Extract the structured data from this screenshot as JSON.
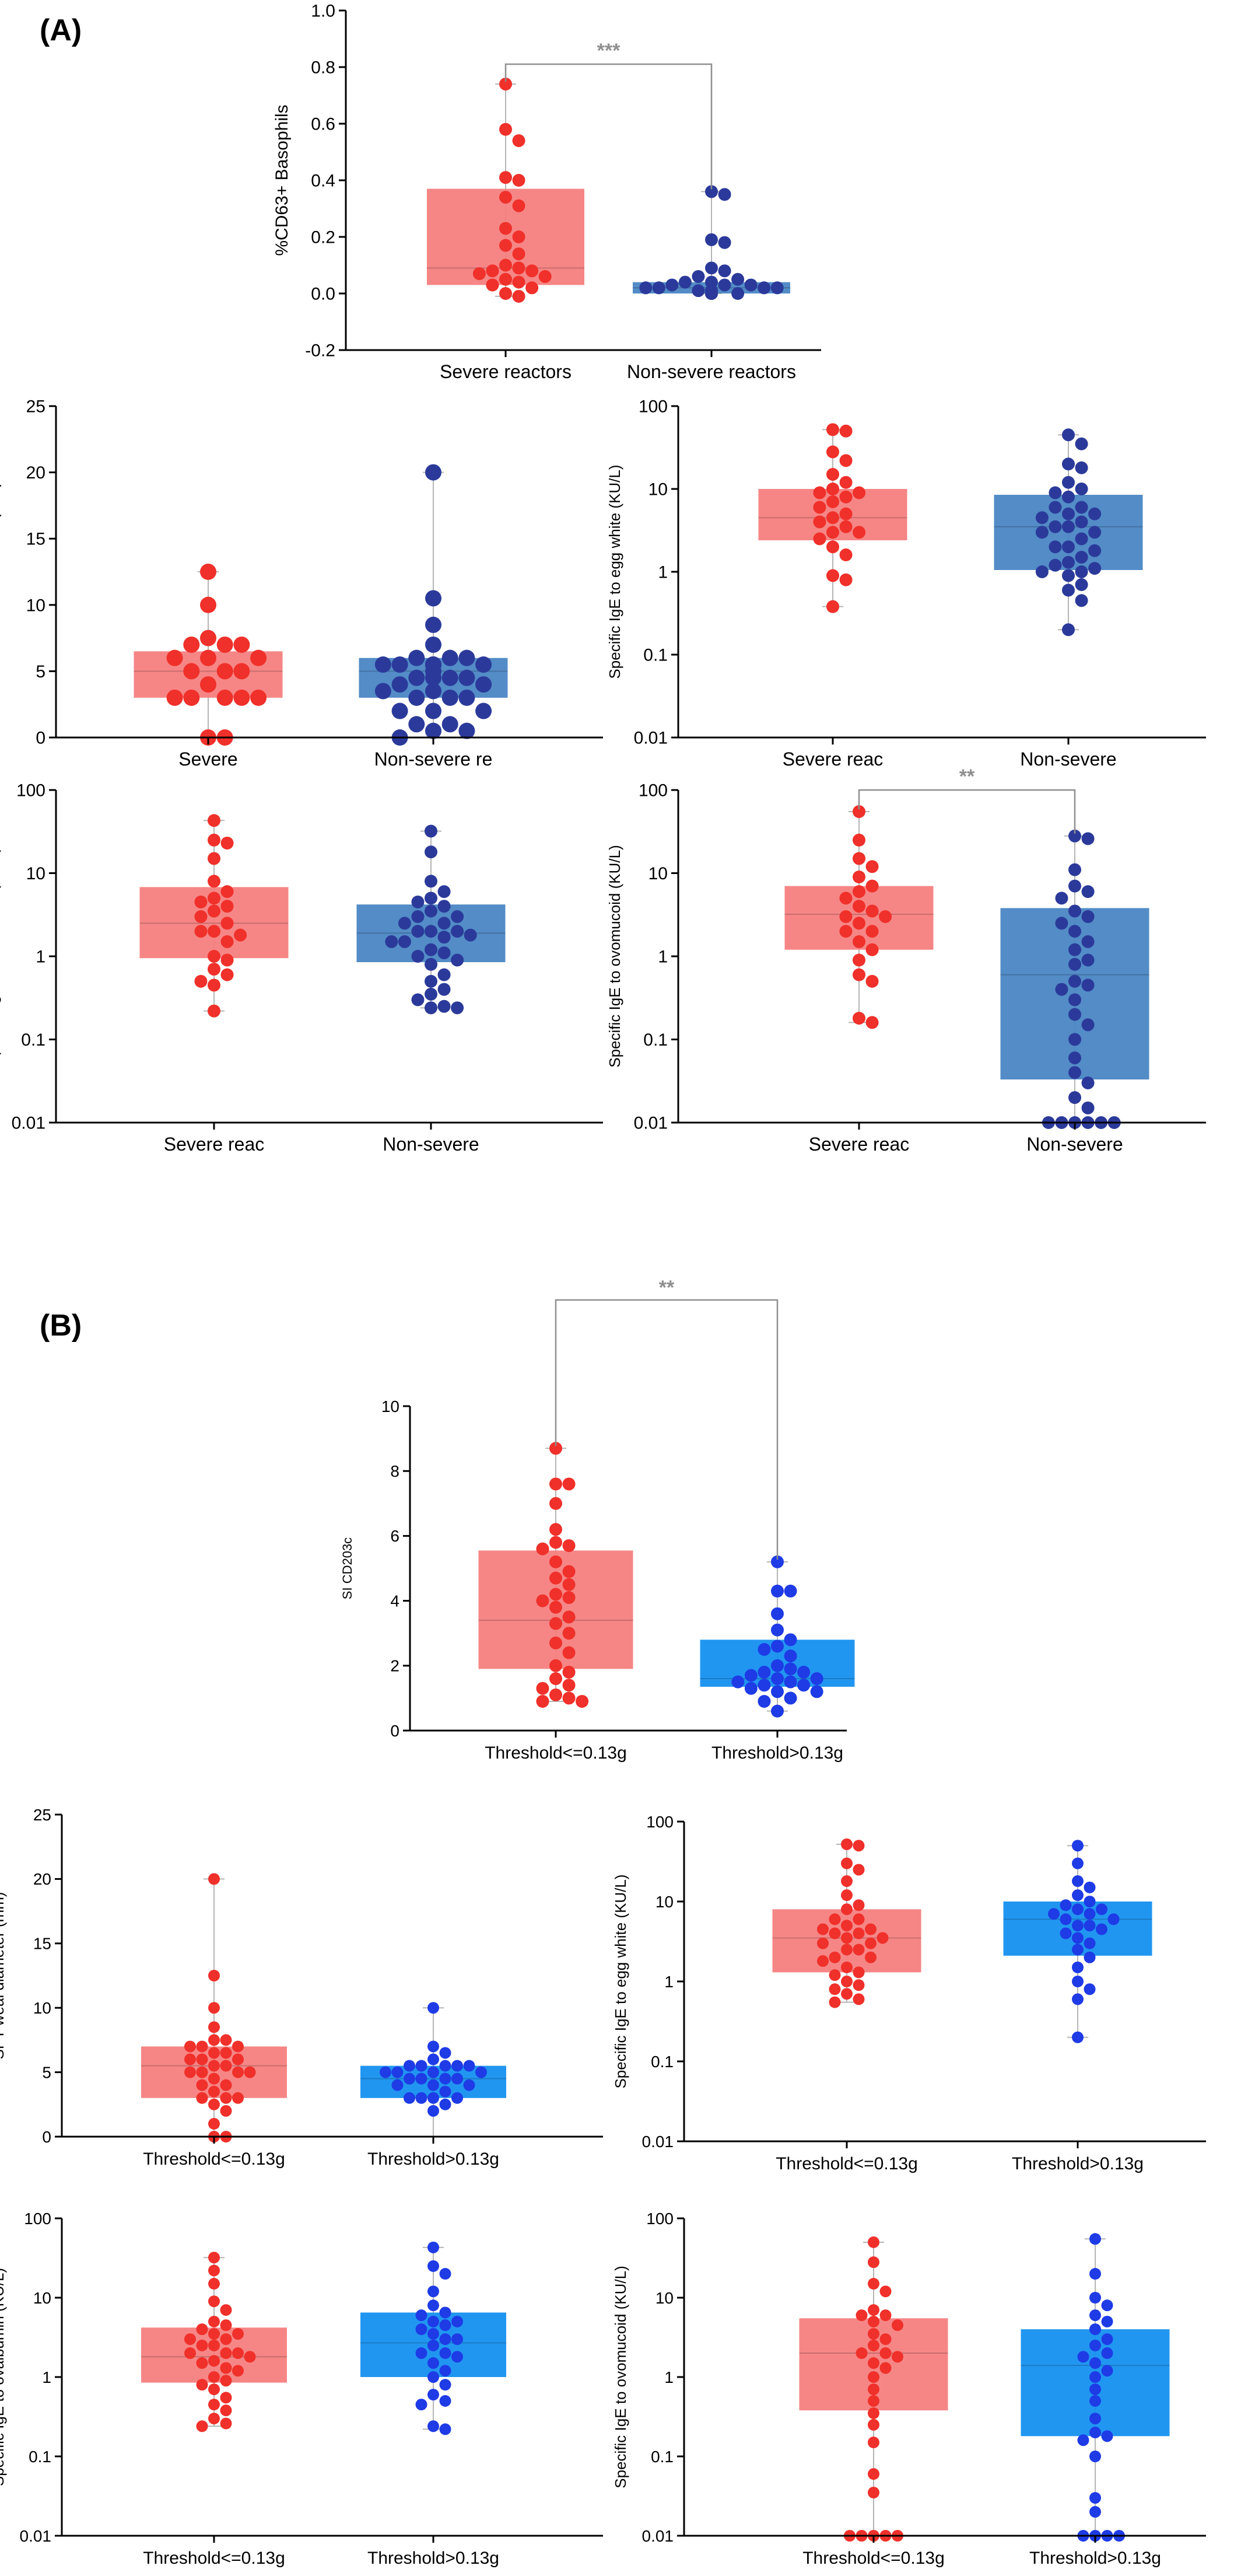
{
  "panels": {
    "a": "(A)",
    "b": "(B)"
  },
  "colors": {
    "severe": "#F57F7F",
    "severe_dot": "#F0302A",
    "nonsevere_a": "#4A86C4",
    "nonsevere_a_dot": "#2B3A9A",
    "nonsevere_b": "#1590F0",
    "nonsevere_b_dot": "#1E3BE6",
    "axis": "#000000",
    "whisker": "#B5B5B5",
    "sig": "#8F8F8F"
  },
  "chart_data": [
    {
      "id": "A1",
      "type": "box",
      "ylabel": "%CD63+ Basophils",
      "scale": "linear",
      "ylim": [
        -0.2,
        1.0
      ],
      "yticks": [
        -0.2,
        0.0,
        0.2,
        0.4,
        0.6,
        0.8,
        1.0
      ],
      "ytick_labels": [
        "-0.2",
        "0.0",
        "0.2",
        "0.4",
        "0.6",
        "0.8",
        "1.0"
      ],
      "categories": [
        "Severe reactors",
        "Non-severe reactors"
      ],
      "significance": "***",
      "series": [
        {
          "box": [
            0.03,
            0.09,
            0.37
          ],
          "whisker": [
            -0.01,
            0.74
          ],
          "points": [
            0.74,
            0.58,
            0.54,
            0.41,
            0.4,
            0.34,
            0.31,
            0.23,
            0.2,
            0.17,
            0.14,
            0.1,
            0.09,
            0.08,
            0.08,
            0.07,
            0.06,
            0.05,
            0.04,
            0.03,
            0.02,
            0.0,
            -0.01
          ]
        },
        {
          "box": [
            0.0,
            0.02,
            0.04
          ],
          "whisker": [
            0.0,
            0.36
          ],
          "points": [
            0.36,
            0.35,
            0.19,
            0.18,
            0.09,
            0.08,
            0.06,
            0.05,
            0.04,
            0.04,
            0.03,
            0.03,
            0.03,
            0.02,
            0.02,
            0.02,
            0.02,
            0.01,
            0.01,
            0.01,
            0.01,
            0.01,
            0.01,
            0.0,
            0.0,
            0.0,
            0.0,
            0.0,
            0.0,
            0.0,
            0.0,
            0.0
          ]
        }
      ]
    },
    {
      "id": "A2",
      "type": "box",
      "ylabel": "SPT weal diameter (mm)",
      "scale": "linear",
      "ylim": [
        0,
        25
      ],
      "yticks": [
        0,
        5,
        10,
        15,
        20,
        25
      ],
      "ytick_labels": [
        "0",
        "5",
        "10",
        "15",
        "20",
        "25"
      ],
      "categories": [
        "Severe",
        "Non-severe re"
      ],
      "series": [
        {
          "box": [
            3,
            5,
            6.5
          ],
          "whisker": [
            0,
            12.5
          ],
          "points": [
            12.5,
            10,
            7.5,
            7,
            7,
            7,
            6,
            6,
            6,
            5,
            5,
            5,
            4,
            3,
            3,
            3,
            3,
            3,
            0,
            0
          ]
        },
        {
          "box": [
            3,
            5,
            6
          ],
          "whisker": [
            0,
            20
          ],
          "points": [
            20,
            10.5,
            8.5,
            7,
            6,
            6,
            6,
            5.5,
            5.5,
            5.5,
            5.5,
            5.5,
            5.5,
            5.5,
            5.5,
            5.5,
            5,
            4.5,
            4.5,
            4.5,
            4.5,
            4,
            4,
            3.5,
            3.5,
            3,
            3,
            3,
            2,
            2,
            2,
            1,
            1,
            0.5,
            0.5,
            0
          ]
        }
      ]
    },
    {
      "id": "A3",
      "type": "box",
      "ylabel": "Specific IgE to egg white (KU/L)",
      "scale": "log",
      "ylim": [
        0.01,
        100
      ],
      "yticks": [
        0.01,
        0.1,
        1,
        10,
        100
      ],
      "ytick_labels": [
        "0.01",
        "0.1",
        "1",
        "10",
        "100"
      ],
      "categories": [
        "Severe reac",
        "Non-severe"
      ],
      "series": [
        {
          "box": [
            2.4,
            4.5,
            10
          ],
          "whisker": [
            0.38,
            52
          ],
          "points": [
            52,
            50,
            28,
            22,
            15,
            12,
            10,
            9,
            9,
            8,
            7,
            6,
            5,
            4.5,
            4,
            3.5,
            3,
            3,
            2.5,
            2,
            1.6,
            0.9,
            0.8,
            0.38
          ]
        },
        {
          "box": [
            1.05,
            3.5,
            8.5
          ],
          "whisker": [
            0.2,
            45
          ],
          "points": [
            45,
            35,
            20,
            18,
            12,
            10,
            9,
            8,
            6,
            6,
            5,
            5,
            4.5,
            4,
            3.5,
            3.5,
            3,
            3,
            2.5,
            2,
            2,
            1.8,
            1.5,
            1.3,
            1.2,
            1.1,
            1,
            1,
            0.9,
            0.7,
            0.6,
            0.45,
            0.2
          ]
        }
      ]
    },
    {
      "id": "A4",
      "type": "box",
      "ylabel": "Specific IgE to ovalbumin (KU/L)",
      "scale": "log",
      "ylim": [
        0.01,
        100
      ],
      "yticks": [
        0.01,
        0.1,
        1,
        10,
        100
      ],
      "ytick_labels": [
        "0.01",
        "0.1",
        "1",
        "10",
        "100"
      ],
      "categories": [
        "Severe reac",
        "Non-severe"
      ],
      "series": [
        {
          "box": [
            0.95,
            2.5,
            6.8
          ],
          "whisker": [
            0.22,
            43
          ],
          "points": [
            43,
            25,
            23,
            15,
            8,
            6,
            5,
            4.5,
            4,
            3.5,
            3,
            2.5,
            2,
            2,
            1.8,
            1.5,
            1,
            0.9,
            0.7,
            0.6,
            0.5,
            0.45,
            0.22
          ]
        },
        {
          "box": [
            0.85,
            1.9,
            4.2
          ],
          "whisker": [
            0.24,
            32
          ],
          "points": [
            32,
            18,
            8,
            6,
            5,
            4.5,
            4,
            3.5,
            3,
            3,
            2.5,
            2.5,
            2,
            2,
            2,
            1.8,
            1.7,
            1.5,
            1.5,
            1.2,
            1.1,
            1,
            0.9,
            0.8,
            0.6,
            0.5,
            0.4,
            0.35,
            0.3,
            0.25,
            0.24,
            0.24
          ]
        }
      ]
    },
    {
      "id": "A5",
      "type": "box",
      "ylabel": "Specific IgE to ovomucoid (KU/L)",
      "scale": "log",
      "ylim": [
        0.01,
        100
      ],
      "yticks": [
        0.01,
        0.1,
        1,
        10,
        100
      ],
      "ytick_labels": [
        "0.01",
        "0.1",
        "1",
        "10",
        "100"
      ],
      "categories": [
        "Severe reac",
        "Non-severe"
      ],
      "significance": "**",
      "series": [
        {
          "box": [
            1.2,
            3.2,
            7
          ],
          "whisker": [
            0.16,
            55
          ],
          "points": [
            55,
            25,
            15,
            12,
            9,
            7,
            6,
            5,
            4,
            3.5,
            3,
            3,
            2.5,
            2,
            2,
            1.5,
            1.2,
            0.9,
            0.6,
            0.5,
            0.18,
            0.16
          ]
        },
        {
          "box": [
            0.033,
            0.6,
            3.8
          ],
          "whisker": [
            0.01,
            28
          ],
          "points": [
            28,
            26,
            11,
            7,
            6,
            5,
            3.5,
            3,
            2.5,
            2,
            1.5,
            1.2,
            0.9,
            0.8,
            0.5,
            0.45,
            0.4,
            0.3,
            0.2,
            0.15,
            0.1,
            0.06,
            0.04,
            0.03,
            0.02,
            0.015,
            0.01,
            0.01,
            0.01,
            0.01,
            0.01,
            0.01
          ]
        }
      ]
    },
    {
      "id": "B1",
      "type": "box",
      "ylabel": "SI CD203c",
      "scale": "linear",
      "ylim": [
        0,
        10
      ],
      "yticks": [
        0,
        2,
        4,
        6,
        8,
        10
      ],
      "ytick_labels": [
        "0",
        "2",
        "4",
        "6",
        "8",
        "10"
      ],
      "categories": [
        "Threshold<=0.13g",
        "Threshold>0.13g"
      ],
      "significance": "**",
      "series": [
        {
          "box": [
            1.9,
            3.4,
            5.55
          ],
          "whisker": [
            0.9,
            8.7
          ],
          "points": [
            8.7,
            7.6,
            7.6,
            7.0,
            6.2,
            5.8,
            5.7,
            5.6,
            5.2,
            4.9,
            4.7,
            4.5,
            4.2,
            4.1,
            4.0,
            3.8,
            3.5,
            3.3,
            3.0,
            2.7,
            2.4,
            2.0,
            1.8,
            1.6,
            1.4,
            1.3,
            1.1,
            1.0,
            0.9,
            0.9
          ]
        },
        {
          "box": [
            1.35,
            1.6,
            2.8
          ],
          "whisker": [
            0.6,
            5.2
          ],
          "points": [
            5.2,
            4.3,
            4.3,
            3.6,
            3.1,
            2.8,
            2.6,
            2.5,
            2.3,
            2.0,
            1.9,
            1.8,
            1.8,
            1.7,
            1.6,
            1.6,
            1.5,
            1.5,
            1.4,
            1.4,
            1.3,
            1.2,
            1.2,
            1.0,
            0.9,
            0.6
          ]
        }
      ]
    },
    {
      "id": "B2",
      "type": "box",
      "ylabel": "SPT weal diameter (mm)",
      "scale": "linear",
      "ylim": [
        0,
        25
      ],
      "yticks": [
        0,
        5,
        10,
        15,
        20,
        25
      ],
      "ytick_labels": [
        "0",
        "5",
        "10",
        "15",
        "20",
        "25"
      ],
      "categories": [
        "Threshold<=0.13g",
        "Threshold>0.13g"
      ],
      "series": [
        {
          "box": [
            3,
            5.5,
            7
          ],
          "whisker": [
            0,
            20
          ],
          "points": [
            20,
            12.5,
            10,
            8.5,
            7.5,
            7.5,
            7,
            7,
            7,
            6.5,
            6.5,
            6,
            6,
            6,
            5.5,
            5.5,
            5,
            5,
            5,
            5,
            4.5,
            4,
            4,
            3.5,
            3,
            3,
            3,
            2.5,
            2,
            1,
            0,
            0
          ]
        },
        {
          "box": [
            3,
            4.5,
            5.5
          ],
          "whisker": [
            0,
            10
          ],
          "points": [
            10,
            7,
            6.5,
            6,
            5.5,
            5.5,
            5.5,
            5.5,
            5.5,
            5,
            5,
            5,
            5,
            4.5,
            4.5,
            4.5,
            4.5,
            4,
            4,
            4,
            3.5,
            3,
            3,
            3,
            3,
            2.5,
            2
          ]
        }
      ]
    },
    {
      "id": "B3",
      "type": "box",
      "ylabel": "Specific IgE to egg white (KU/L)",
      "scale": "log",
      "ylim": [
        0.01,
        100
      ],
      "yticks": [
        0.01,
        0.1,
        1,
        10,
        100
      ],
      "ytick_labels": [
        "0.01",
        "0.1",
        "1",
        "10",
        "100"
      ],
      "categories": [
        "Threshold<=0.13g",
        "Threshold>0.13g"
      ],
      "series": [
        {
          "box": [
            1.3,
            3.5,
            8
          ],
          "whisker": [
            0.55,
            52
          ],
          "points": [
            52,
            50,
            30,
            25,
            18,
            12,
            9,
            8,
            6,
            6,
            5,
            4.5,
            4.5,
            4,
            4,
            3.5,
            3.5,
            3,
            3,
            2.5,
            2.5,
            2,
            2,
            1.8,
            1.5,
            1.3,
            1.2,
            1,
            0.9,
            0.8,
            0.7,
            0.6,
            0.55
          ]
        },
        {
          "box": [
            2.1,
            6,
            10
          ],
          "whisker": [
            0.2,
            50
          ],
          "points": [
            50,
            30,
            18,
            15,
            12,
            10,
            9,
            8,
            8,
            7,
            7,
            6,
            6,
            5,
            5,
            4.5,
            4,
            3.5,
            3,
            2.5,
            2,
            1.5,
            1,
            0.8,
            0.6,
            0.2
          ]
        }
      ]
    },
    {
      "id": "B4",
      "type": "box",
      "ylabel": "Specific IgE to ovalbumin (KU/L)",
      "scale": "log",
      "ylim": [
        0.01,
        100
      ],
      "yticks": [
        0.01,
        0.1,
        1,
        10,
        100
      ],
      "ytick_labels": [
        "0.01",
        "0.1",
        "1",
        "10",
        "100"
      ],
      "categories": [
        "Threshold<=0.13g",
        "Threshold>0.13g"
      ],
      "series": [
        {
          "box": [
            0.85,
            1.8,
            4.2
          ],
          "whisker": [
            0.24,
            32
          ],
          "points": [
            32,
            22,
            15,
            9,
            7,
            5,
            4.5,
            4,
            3.5,
            3.5,
            3,
            3,
            2.5,
            2.5,
            2,
            2,
            2,
            1.8,
            1.6,
            1.5,
            1.3,
            1.2,
            1,
            0.9,
            0.8,
            0.7,
            0.55,
            0.45,
            0.38,
            0.3,
            0.26,
            0.24
          ]
        },
        {
          "box": [
            1,
            2.7,
            6.5
          ],
          "whisker": [
            0.22,
            43
          ],
          "points": [
            43,
            25,
            20,
            12,
            8,
            6.5,
            6,
            5,
            5,
            4.5,
            4,
            3.5,
            3,
            3,
            2.5,
            2,
            2,
            1.8,
            1.5,
            1.2,
            1,
            0.8,
            0.6,
            0.5,
            0.45,
            0.24,
            0.22
          ]
        }
      ]
    },
    {
      "id": "B5",
      "type": "box",
      "ylabel": "Specific IgE to ovomucoid (KU/L)",
      "scale": "log",
      "ylim": [
        0.01,
        100
      ],
      "yticks": [
        0.01,
        0.1,
        1,
        10,
        100
      ],
      "ytick_labels": [
        "0.01",
        "0.1",
        "1",
        "10",
        "100"
      ],
      "categories": [
        "Threshold<=0.13g",
        "Threshold>0.13g"
      ],
      "series": [
        {
          "box": [
            0.38,
            2,
            5.5
          ],
          "whisker": [
            0.01,
            50
          ],
          "points": [
            50,
            28,
            15,
            12,
            7,
            6,
            6,
            5,
            4.5,
            3.5,
            3,
            2.5,
            2,
            2,
            1.8,
            1.5,
            1.3,
            1,
            0.7,
            0.5,
            0.35,
            0.25,
            0.15,
            0.06,
            0.035,
            0.01,
            0.01,
            0.01,
            0.01,
            0.01
          ]
        },
        {
          "box": [
            0.18,
            1.4,
            4
          ],
          "whisker": [
            0.01,
            55
          ],
          "points": [
            55,
            20,
            10,
            8,
            6,
            5,
            4,
            3,
            2.5,
            2,
            1.8,
            1.5,
            1.2,
            1,
            0.7,
            0.5,
            0.3,
            0.2,
            0.18,
            0.16,
            0.1,
            0.03,
            0.02,
            0.01,
            0.01,
            0.01,
            0.01
          ]
        }
      ]
    }
  ]
}
